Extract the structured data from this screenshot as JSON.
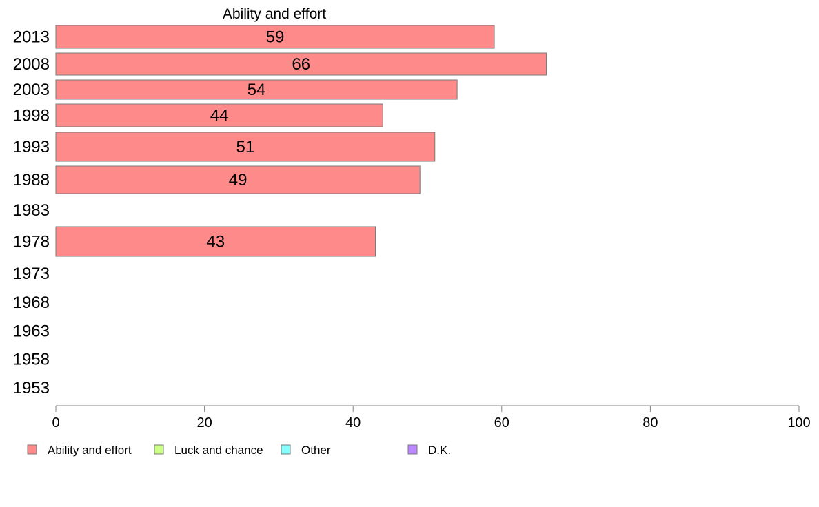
{
  "chart_data": {
    "type": "bar",
    "orientation": "horizontal",
    "title": "Ability and effort",
    "xlabel": "",
    "ylabel": "",
    "categories": [
      "2013",
      "2008",
      "2003",
      "1998",
      "1993",
      "1988",
      "1983",
      "1978",
      "1973",
      "1968",
      "1963",
      "1958",
      "1953"
    ],
    "series": [
      {
        "name": "Ability and effort",
        "color": "#ff8a8a",
        "values": [
          59,
          66,
          54,
          44,
          51,
          49,
          null,
          43,
          null,
          null,
          null,
          null,
          null
        ],
        "data_labels": [
          "59",
          "66",
          "54",
          "44",
          "51",
          "49",
          "",
          "43",
          "",
          "",
          "",
          "",
          ""
        ]
      }
    ],
    "xlim": [
      0,
      100
    ],
    "x_ticks": [
      "0",
      "20",
      "40",
      "60",
      "80",
      "100"
    ],
    "grid": false,
    "legend": {
      "placement": "bottom",
      "entries": [
        {
          "label": "Ability and effort",
          "color": "#ff8a8a"
        },
        {
          "label": "Luck and chance",
          "color": "#ccff88"
        },
        {
          "label": "Other",
          "color": "#88ffff"
        },
        {
          "label": "D.K.",
          "color": "#bb88ff"
        }
      ]
    }
  }
}
